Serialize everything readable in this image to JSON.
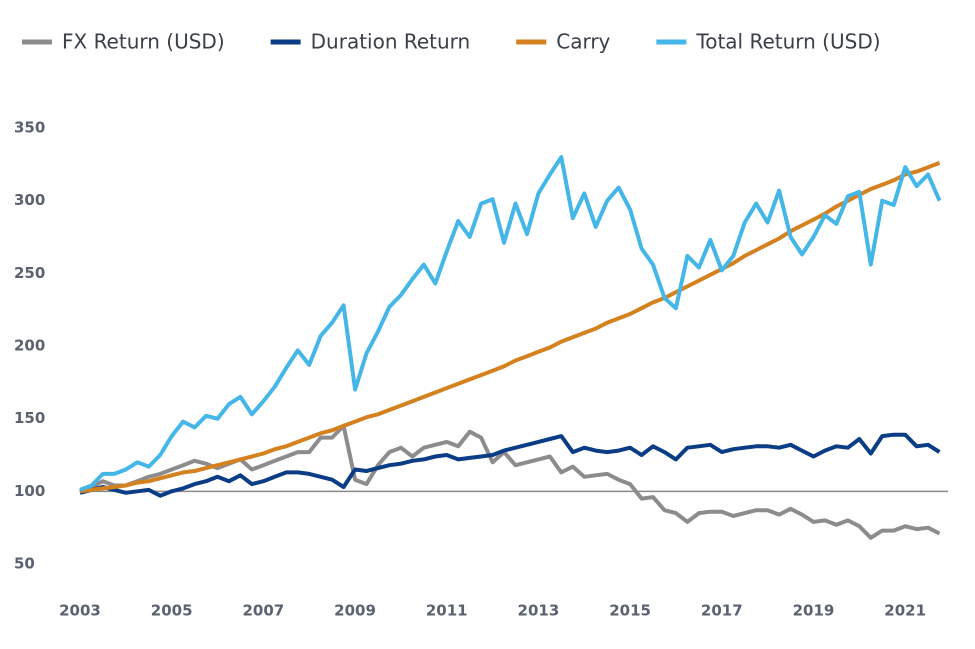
{
  "chart_data": {
    "type": "line",
    "x": [
      2003,
      2003.25,
      2003.5,
      2003.75,
      2004,
      2004.25,
      2004.5,
      2004.75,
      2005,
      2005.25,
      2005.5,
      2005.75,
      2006,
      2006.25,
      2006.5,
      2006.75,
      2007,
      2007.25,
      2007.5,
      2007.75,
      2008,
      2008.25,
      2008.5,
      2008.75,
      2009,
      2009.25,
      2009.5,
      2009.75,
      2010,
      2010.25,
      2010.5,
      2010.75,
      2011,
      2011.25,
      2011.5,
      2011.75,
      2012,
      2012.25,
      2012.5,
      2012.75,
      2013,
      2013.25,
      2013.5,
      2013.75,
      2014,
      2014.25,
      2014.5,
      2014.75,
      2015,
      2015.25,
      2015.5,
      2015.75,
      2016,
      2016.25,
      2016.5,
      2016.75,
      2017,
      2017.25,
      2017.5,
      2017.75,
      2018,
      2018.25,
      2018.5,
      2018.75,
      2019,
      2019.25,
      2019.5,
      2019.75,
      2020,
      2020.25,
      2020.5,
      2020.75,
      2021,
      2021.25,
      2021.5,
      2021.75
    ],
    "series": [
      {
        "name": "FX Return (USD)",
        "color": "#8c8c8c",
        "values": [
          100,
          103,
          107,
          104,
          104,
          107,
          110,
          112,
          115,
          118,
          121,
          119,
          116,
          119,
          122,
          115,
          118,
          121,
          124,
          127,
          127,
          137,
          137,
          145,
          108,
          105,
          118,
          127,
          130,
          124,
          130,
          132,
          134,
          131,
          141,
          137,
          120,
          127,
          118,
          120,
          122,
          124,
          113,
          117,
          110,
          111,
          112,
          108,
          105,
          95,
          96,
          87,
          85,
          79,
          85,
          86,
          86,
          83,
          85,
          87,
          87,
          84,
          88,
          84,
          79,
          80,
          77,
          80,
          76,
          68,
          73,
          73,
          76,
          74,
          75,
          71
        ]
      },
      {
        "name": "Duration Return",
        "color": "#0b3d86",
        "values": [
          99,
          101,
          103,
          101,
          99,
          100,
          101,
          97,
          100,
          102,
          105,
          107,
          110,
          107,
          111,
          105,
          107,
          110,
          113,
          113,
          112,
          110,
          108,
          103,
          115,
          114,
          116,
          118,
          119,
          121,
          122,
          124,
          125,
          122,
          123,
          124,
          125,
          128,
          130,
          132,
          134,
          136,
          138,
          127,
          130,
          128,
          127,
          128,
          130,
          125,
          131,
          127,
          122,
          130,
          131,
          132,
          127,
          129,
          130,
          131,
          131,
          130,
          132,
          128,
          124,
          128,
          131,
          130,
          136,
          126,
          138,
          139,
          139,
          131,
          132,
          127
        ]
      },
      {
        "name": "Carry",
        "color": "#d4811f",
        "values": [
          100,
          101,
          102,
          103,
          104,
          106,
          107,
          109,
          111,
          113,
          114,
          116,
          118,
          120,
          122,
          124,
          126,
          129,
          131,
          134,
          137,
          140,
          142,
          145,
          148,
          151,
          153,
          156,
          159,
          162,
          165,
          168,
          171,
          174,
          177,
          180,
          183,
          186,
          190,
          193,
          196,
          199,
          203,
          206,
          209,
          212,
          216,
          219,
          222,
          226,
          230,
          233,
          237,
          241,
          245,
          249,
          253,
          257,
          262,
          266,
          270,
          274,
          279,
          283,
          287,
          291,
          296,
          300,
          304,
          308,
          311,
          314,
          318,
          320,
          323,
          326
        ]
      },
      {
        "name": "Total Return (USD)",
        "color": "#45b6e8",
        "values": [
          101,
          104,
          112,
          112,
          115,
          120,
          117,
          125,
          138,
          148,
          144,
          152,
          150,
          160,
          165,
          153,
          162,
          172,
          185,
          197,
          187,
          207,
          216,
          228,
          170,
          195,
          210,
          227,
          235,
          246,
          256,
          243,
          265,
          286,
          275,
          298,
          301,
          271,
          298,
          277,
          305,
          318,
          330,
          288,
          305,
          282,
          300,
          309,
          294,
          267,
          256,
          233,
          226,
          262,
          254,
          273,
          252,
          262,
          285,
          298,
          285,
          307,
          275,
          263,
          275,
          290,
          284,
          303,
          306,
          256,
          300,
          297,
          323,
          310,
          318,
          300
        ]
      }
    ],
    "xlim": [
      2003,
      2022
    ],
    "xticks": [
      2003,
      2005,
      2007,
      2009,
      2011,
      2013,
      2015,
      2017,
      2019,
      2021
    ],
    "ylim": [
      50,
      350
    ],
    "yticks": [
      50,
      100,
      150,
      200,
      250,
      300,
      350
    ],
    "reference_line": 100,
    "grid": false,
    "legend": "top-left"
  }
}
